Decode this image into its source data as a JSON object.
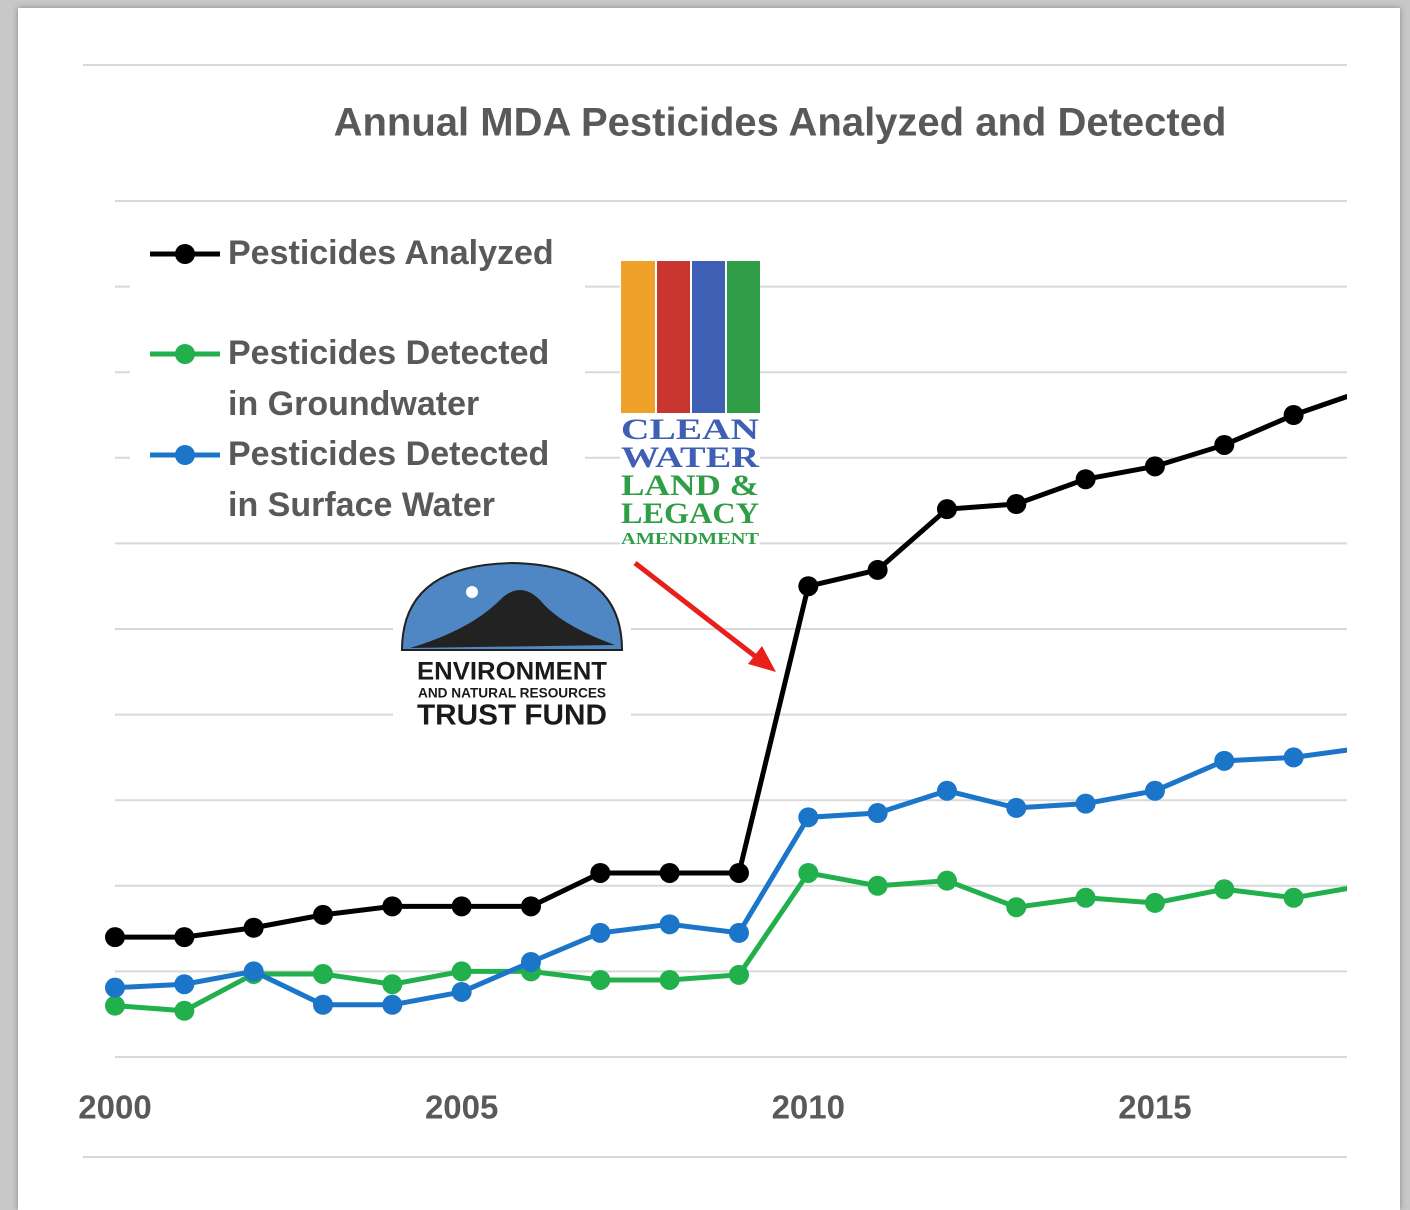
{
  "chart_data": {
    "type": "line",
    "title": "Annual MDA Pesticides Analyzed and Detected",
    "x": [
      2000,
      2001,
      2002,
      2003,
      2004,
      2005,
      2006,
      2007,
      2008,
      2009,
      2010,
      2011,
      2012,
      2013,
      2014,
      2015,
      2016,
      2017,
      2018
    ],
    "series": [
      {
        "name": "Pesticides Analyzed",
        "color": "#000000",
        "values": [
          1.4,
          1.4,
          1.51,
          1.66,
          1.76,
          1.76,
          1.76,
          2.15,
          2.15,
          2.15,
          5.5,
          5.69,
          6.4,
          6.46,
          6.75,
          6.9,
          7.15,
          7.5,
          7.78
        ]
      },
      {
        "name": "Pesticides Detected in Groundwater",
        "color": "#21b04b",
        "values": [
          0.6,
          0.54,
          0.97,
          0.97,
          0.85,
          1.0,
          1.0,
          0.9,
          0.9,
          0.96,
          2.15,
          2.0,
          2.06,
          1.75,
          1.86,
          1.8,
          1.96,
          1.86,
          2.0
        ]
      },
      {
        "name": "Pesticides Detected in Surface Water",
        "color": "#1b75c9",
        "values": [
          0.81,
          0.85,
          1.0,
          0.61,
          0.61,
          0.76,
          1.11,
          1.45,
          1.55,
          1.45,
          2.8,
          2.85,
          3.11,
          2.91,
          2.96,
          3.11,
          3.46,
          3.5,
          3.61
        ]
      }
    ],
    "xlim": [
      2000,
      2017.77
    ],
    "xticks": [
      2000,
      2005,
      2010,
      2015
    ],
    "ylim": [
      0,
      10
    ],
    "yticks": [
      0,
      1,
      2,
      3,
      4,
      5,
      6,
      7,
      8,
      9,
      10
    ],
    "grid": true,
    "logos": {
      "clean_water": [
        "CLEAN",
        "WATER",
        "LAND &",
        "LEGACY",
        "AMENDMENT"
      ],
      "trust_fund": [
        "ENVIRONMENT",
        "AND NATURAL RESOURCES",
        "TRUST FUND"
      ]
    }
  }
}
